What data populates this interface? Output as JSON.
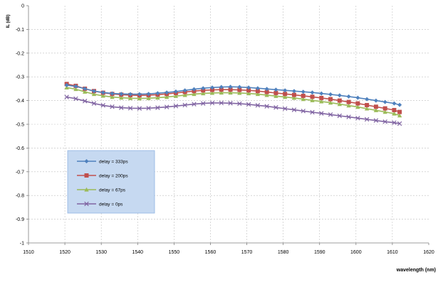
{
  "chart_data": {
    "type": "line",
    "title": "",
    "xlabel": "wavelength (nm)",
    "ylabel": "IL (dB)",
    "xlim": [
      1510,
      1620
    ],
    "ylim": [
      -1,
      0
    ],
    "x_ticks": [
      1510,
      1520,
      1530,
      1540,
      1550,
      1560,
      1570,
      1580,
      1590,
      1600,
      1610,
      1620
    ],
    "y_ticks": [
      0,
      -0.1,
      -0.2,
      -0.3,
      -0.4,
      -0.5,
      -0.6,
      -0.7,
      -0.8,
      -0.9,
      -1
    ],
    "y_tick_labels": [
      "0",
      "-0.1",
      "-0.2",
      "-0.3",
      "-0.4",
      "-0.5",
      "-0.6",
      "-0.7",
      "-0.8",
      "-0.9",
      "-1"
    ],
    "grid": true,
    "legend_position": "lower-left",
    "x": [
      1520.5,
      1523,
      1525.5,
      1528,
      1530.5,
      1533,
      1535.5,
      1538,
      1540.5,
      1543,
      1545.5,
      1548,
      1550.5,
      1553,
      1555.5,
      1558,
      1560.5,
      1563,
      1565.5,
      1568,
      1570.5,
      1573,
      1575.5,
      1578,
      1580.5,
      1583,
      1585.5,
      1588,
      1590.5,
      1593,
      1595.5,
      1598,
      1600.5,
      1603,
      1605.5,
      1608,
      1610.5,
      1612
    ],
    "series": [
      {
        "name": "delay = 333ps",
        "color": "#4f81bd",
        "marker": "diamond",
        "values": [
          -0.335,
          -0.34,
          -0.35,
          -0.36,
          -0.366,
          -0.37,
          -0.372,
          -0.373,
          -0.373,
          -0.372,
          -0.369,
          -0.366,
          -0.362,
          -0.357,
          -0.352,
          -0.348,
          -0.345,
          -0.343,
          -0.342,
          -0.343,
          -0.345,
          -0.348,
          -0.351,
          -0.354,
          -0.357,
          -0.36,
          -0.363,
          -0.366,
          -0.37,
          -0.374,
          -0.378,
          -0.383,
          -0.388,
          -0.394,
          -0.4,
          -0.406,
          -0.412,
          -0.418
        ]
      },
      {
        "name": "delay = 200ps",
        "color": "#c0504d",
        "marker": "square",
        "values": [
          -0.33,
          -0.338,
          -0.35,
          -0.36,
          -0.367,
          -0.372,
          -0.375,
          -0.377,
          -0.378,
          -0.377,
          -0.375,
          -0.372,
          -0.368,
          -0.364,
          -0.36,
          -0.357,
          -0.355,
          -0.354,
          -0.354,
          -0.355,
          -0.357,
          -0.36,
          -0.364,
          -0.368,
          -0.372,
          -0.376,
          -0.38,
          -0.384,
          -0.389,
          -0.394,
          -0.4,
          -0.406,
          -0.412,
          -0.419,
          -0.426,
          -0.433,
          -0.44,
          -0.448
        ]
      },
      {
        "name": "delay = 67ps",
        "color": "#9bbb59",
        "marker": "triangle",
        "values": [
          -0.345,
          -0.352,
          -0.363,
          -0.373,
          -0.38,
          -0.385,
          -0.388,
          -0.39,
          -0.391,
          -0.39,
          -0.388,
          -0.385,
          -0.381,
          -0.377,
          -0.373,
          -0.37,
          -0.368,
          -0.367,
          -0.367,
          -0.368,
          -0.37,
          -0.373,
          -0.377,
          -0.381,
          -0.385,
          -0.389,
          -0.394,
          -0.399,
          -0.404,
          -0.409,
          -0.415,
          -0.421,
          -0.427,
          -0.434,
          -0.441,
          -0.448,
          -0.455,
          -0.463
        ]
      },
      {
        "name": "delay = 0ps",
        "color": "#8064a2",
        "marker": "x",
        "values": [
          -0.385,
          -0.392,
          -0.402,
          -0.412,
          -0.42,
          -0.426,
          -0.43,
          -0.432,
          -0.433,
          -0.432,
          -0.43,
          -0.427,
          -0.423,
          -0.419,
          -0.415,
          -0.412,
          -0.41,
          -0.41,
          -0.411,
          -0.413,
          -0.416,
          -0.42,
          -0.424,
          -0.429,
          -0.434,
          -0.439,
          -0.444,
          -0.449,
          -0.454,
          -0.459,
          -0.464,
          -0.469,
          -0.474,
          -0.479,
          -0.484,
          -0.489,
          -0.493,
          -0.497
        ]
      }
    ]
  }
}
